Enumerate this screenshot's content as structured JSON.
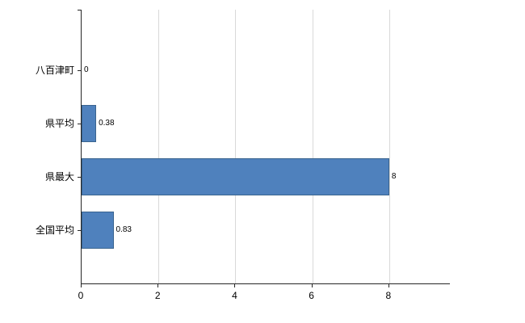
{
  "chart_data": {
    "type": "bar",
    "orientation": "horizontal",
    "title": "",
    "categories": [
      "八百津町",
      "県平均",
      "県最大",
      "全国平均"
    ],
    "values": [
      0,
      0.38,
      8,
      0.83
    ],
    "data_labels": [
      "0",
      "0.38",
      "8",
      "0.83"
    ],
    "x_ticks": [
      "0",
      "2",
      "4",
      "6",
      "8"
    ],
    "x_tick_values": [
      0,
      2,
      4,
      6,
      8
    ],
    "xlim": [
      0,
      9.6
    ],
    "grid": true,
    "legend": false,
    "colors": {
      "bar_fill": "#4f81bd",
      "bar_border": "#3a648f",
      "gridline": "#d9d9d9",
      "axis": "#262626",
      "text": "#000000",
      "background": "#ffffff"
    }
  }
}
